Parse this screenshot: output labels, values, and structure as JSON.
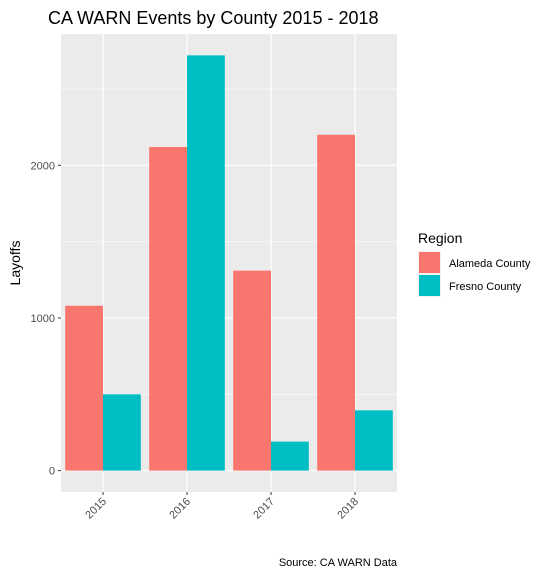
{
  "chart_data": {
    "type": "bar",
    "title": "CA WARN Events by County 2015 - 2018",
    "xlabel": "",
    "ylabel": "Layoffs",
    "caption": "Source: CA WARN Data",
    "categories": [
      "2015",
      "2016",
      "2017",
      "2018"
    ],
    "series": [
      {
        "name": "Alameda County",
        "color": "#F8766D",
        "values": [
          1080,
          2120,
          1310,
          2200
        ]
      },
      {
        "name": "Fresno County",
        "color": "#00BFC4",
        "values": [
          500,
          2720,
          190,
          395
        ]
      }
    ],
    "ylim": [
      -140,
      2860
    ],
    "yticks": [
      0,
      1000,
      2000
    ],
    "yticklabels": [
      "0",
      "1000",
      "2000"
    ],
    "legend": {
      "title": "Region",
      "position": "right"
    },
    "grid": true,
    "panel_background": "#EBEBEB",
    "grid_color": "#FFFFFF"
  }
}
